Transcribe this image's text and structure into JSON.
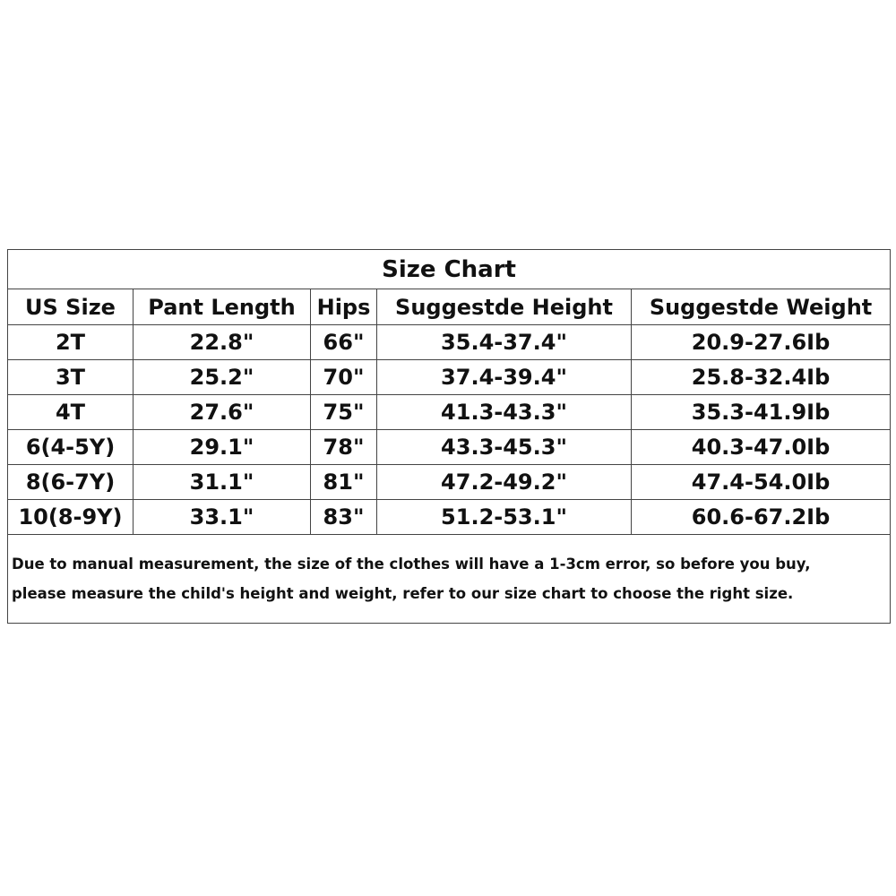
{
  "table": {
    "title": "Size Chart",
    "columns": [
      "US Size",
      "Pant Length",
      "Hips",
      "Suggestde Height",
      "Suggestde Weight"
    ],
    "rows": [
      [
        "2T",
        "22.8\"",
        "66\"",
        "35.4-37.4\"",
        "20.9-27.6Ib"
      ],
      [
        "3T",
        "25.2\"",
        "70\"",
        "37.4-39.4\"",
        "25.8-32.4Ib"
      ],
      [
        "4T",
        "27.6\"",
        "75\"",
        "41.3-43.3\"",
        "35.3-41.9Ib"
      ],
      [
        "6(4-5Y)",
        "29.1\"",
        "78\"",
        "43.3-45.3\"",
        "40.3-47.0Ib"
      ],
      [
        "8(6-7Y)",
        "31.1\"",
        "81\"",
        "47.2-49.2\"",
        "47.4-54.0Ib"
      ],
      [
        "10(8-9Y)",
        "33.1\"",
        "83\"",
        "51.2-53.1\"",
        "60.6-67.2Ib"
      ]
    ],
    "note": {
      "lines": [
        "Due to manual measurement, the size of the clothes will have a 1-3cm error, so before you buy,",
        "please measure the child's height and weight, refer to our size chart to choose the right size."
      ]
    }
  }
}
